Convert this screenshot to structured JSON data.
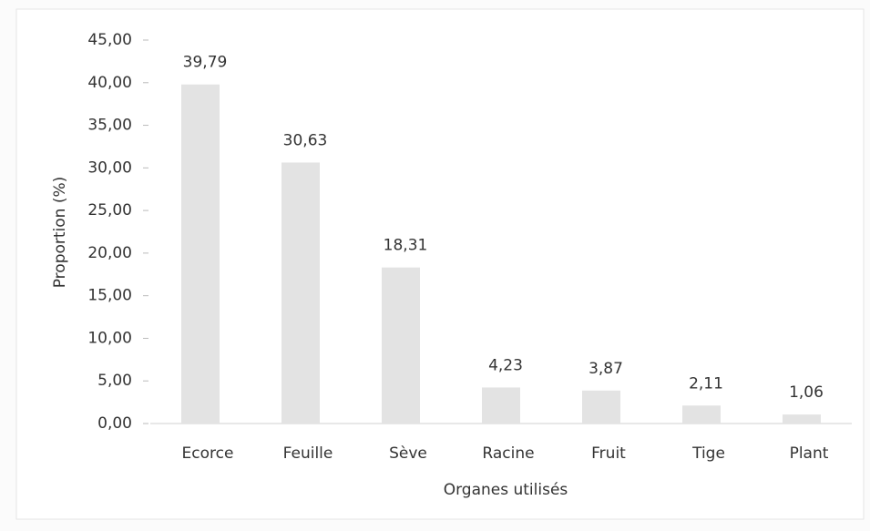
{
  "chart_data": {
    "type": "bar",
    "x_label": "Organes utilisés",
    "y_label": "Proportion (%)",
    "categories": [
      "Ecorce",
      "Feuille",
      "Sève",
      "Racine",
      "Fruit",
      "Tige",
      "Plant"
    ],
    "values": [
      39.79,
      30.63,
      18.31,
      4.23,
      3.87,
      2.11,
      1.06
    ],
    "value_labels": [
      "39,79",
      "30,63",
      "18,31",
      "4,23",
      "3,87",
      "2,11",
      "1,06"
    ],
    "color": "#e3e3e3",
    "ylim": [
      0,
      45
    ],
    "yticks": [
      {
        "value": 0,
        "label": "0,00"
      },
      {
        "value": 5,
        "label": "5,00"
      },
      {
        "value": 10,
        "label": "10,00"
      },
      {
        "value": 15,
        "label": "15,00"
      },
      {
        "value": 20,
        "label": "20,00"
      },
      {
        "value": 25,
        "label": "25,00"
      },
      {
        "value": 30,
        "label": "30,00"
      },
      {
        "value": 35,
        "label": "35,00"
      },
      {
        "value": 40,
        "label": "40,00"
      },
      {
        "value": 45,
        "label": "45,00"
      }
    ],
    "grid": false
  }
}
